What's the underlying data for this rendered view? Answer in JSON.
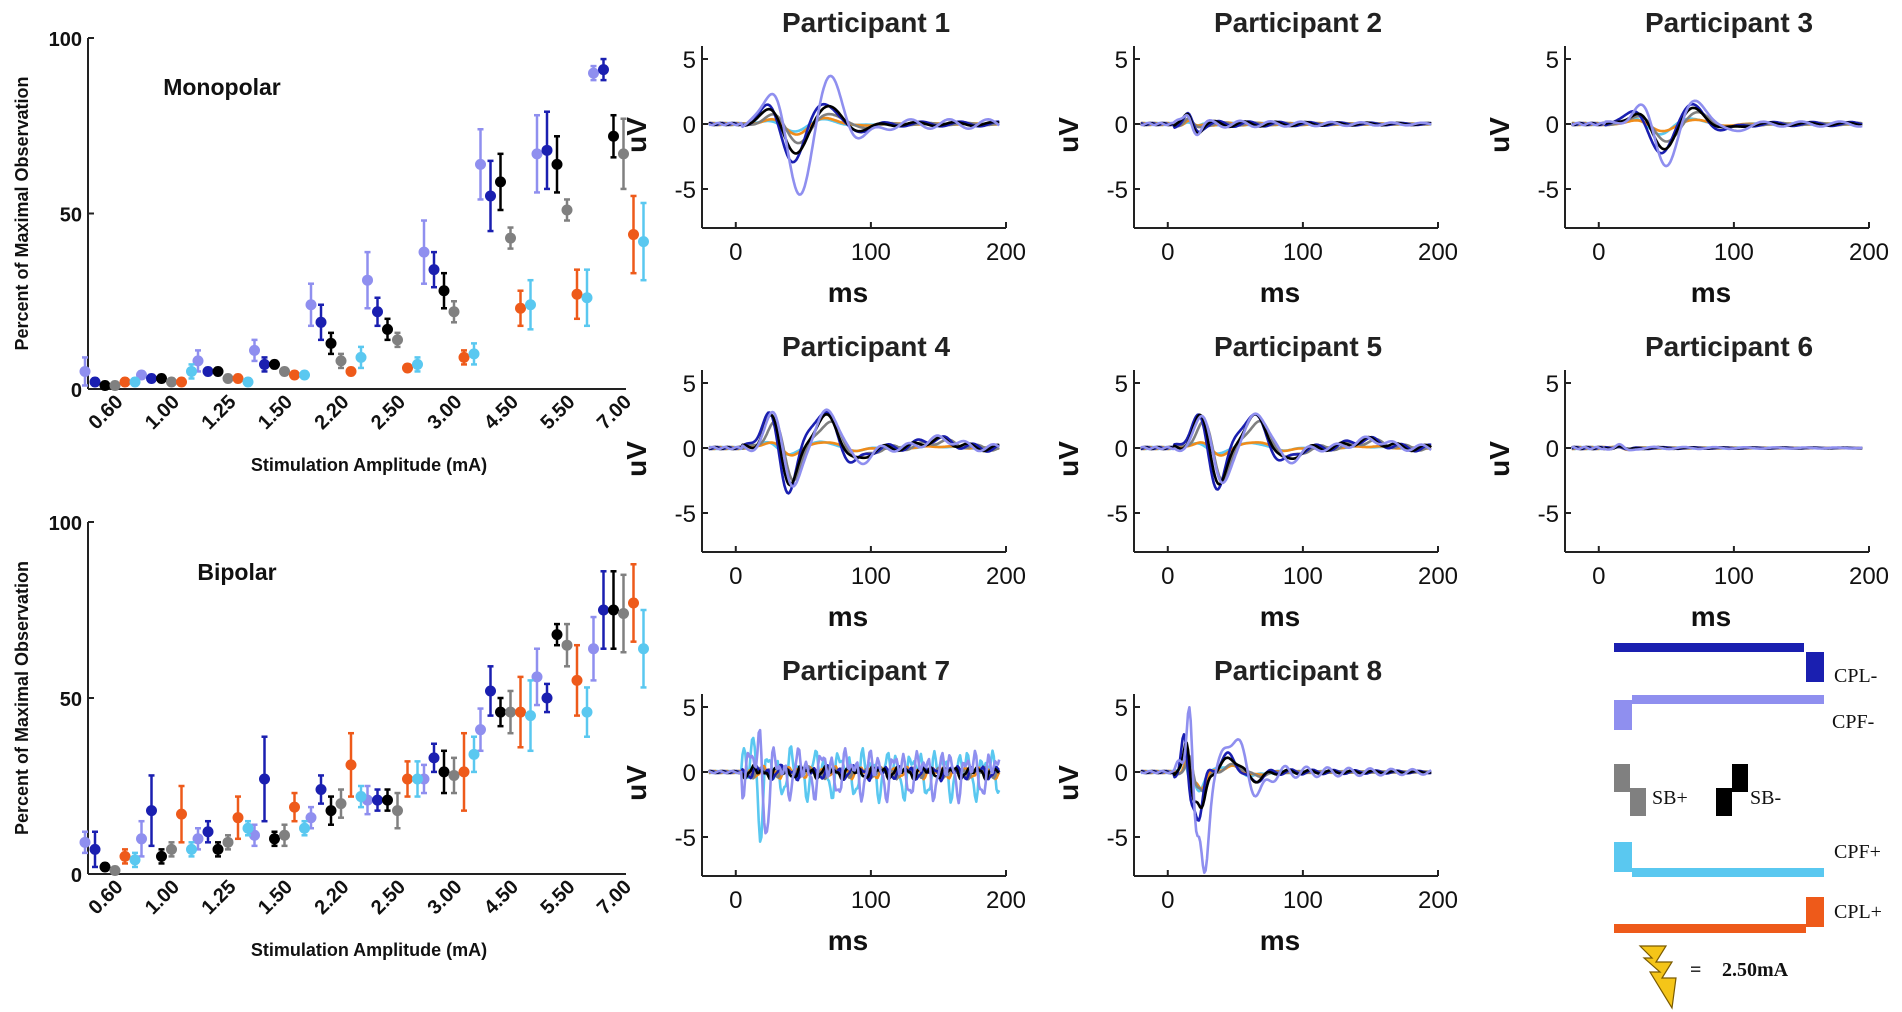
{
  "chart_data": [
    {
      "type": "scatter",
      "subtype": "errorbar",
      "label": "Monopolar",
      "xlabel": "Stimulation Amplitude (mA)",
      "ylabel": "Percent of Maximal Observation",
      "ylim": [
        0,
        100
      ],
      "yticks": [
        0,
        50,
        100
      ],
      "categories": [
        "0.60",
        "1.00",
        "1.25",
        "1.50",
        "2.20",
        "2.50",
        "3.00",
        "4.50",
        "5.50",
        "7.00"
      ],
      "series": [
        {
          "name": "CPF-",
          "values": [
            5,
            4,
            8,
            11,
            24,
            31,
            39,
            64,
            67,
            90
          ],
          "err": [
            4,
            1,
            3,
            3,
            6,
            8,
            9,
            10,
            11,
            2
          ]
        },
        {
          "name": "CPL-",
          "values": [
            2,
            3,
            5,
            7,
            19,
            22,
            34,
            55,
            68,
            91
          ],
          "err": [
            1,
            1,
            1,
            2,
            5,
            4,
            5,
            10,
            11,
            3
          ]
        },
        {
          "name": "SB-",
          "values": [
            1,
            3,
            5,
            7,
            13,
            17,
            28,
            59,
            64,
            72
          ],
          "err": [
            1,
            1,
            1,
            1,
            3,
            3,
            5,
            8,
            8,
            6
          ]
        },
        {
          "name": "SB+",
          "values": [
            1,
            2,
            3,
            5,
            8,
            14,
            22,
            43,
            51,
            67
          ],
          "err": [
            1,
            1,
            1,
            1,
            2,
            2,
            3,
            3,
            3,
            10
          ]
        },
        {
          "name": "CPL+",
          "values": [
            2,
            2,
            3,
            4,
            5,
            6,
            9,
            23,
            27,
            44
          ],
          "err": [
            1,
            1,
            1,
            1,
            1,
            1,
            2,
            5,
            7,
            11
          ]
        },
        {
          "name": "CPF+",
          "values": [
            2,
            5,
            2,
            4,
            9,
            7,
            10,
            24,
            26,
            42
          ],
          "err": [
            1,
            2,
            1,
            1,
            3,
            2,
            3,
            7,
            8,
            11
          ]
        }
      ]
    },
    {
      "type": "scatter",
      "subtype": "errorbar",
      "label": "Bipolar",
      "xlabel": "Stimulation Amplitude (mA)",
      "ylabel": "Percent of Maximal Observation",
      "ylim": [
        0,
        100
      ],
      "yticks": [
        0,
        50,
        100
      ],
      "categories": [
        "0.60",
        "1.00",
        "1.25",
        "1.50",
        "2.20",
        "2.50",
        "3.00",
        "4.50",
        "5.50",
        "7.00"
      ],
      "series": [
        {
          "name": "CPF-",
          "values": [
            9,
            10,
            10,
            11,
            16,
            21,
            27,
            41,
            56,
            64
          ],
          "err": [
            3,
            5,
            3,
            3,
            3,
            4,
            4,
            6,
            8,
            9
          ]
        },
        {
          "name": "CPL-",
          "values": [
            7,
            18,
            12,
            27,
            24,
            21,
            33,
            52,
            50,
            75
          ],
          "err": [
            5,
            10,
            3,
            12,
            4,
            3,
            4,
            7,
            4,
            11
          ]
        },
        {
          "name": "SB-",
          "values": [
            2,
            5,
            7,
            10,
            18,
            21,
            29,
            46,
            68,
            75
          ],
          "err": [
            1,
            2,
            2,
            2,
            4,
            3,
            6,
            4,
            3,
            11
          ]
        },
        {
          "name": "SB+",
          "values": [
            1,
            7,
            9,
            11,
            20,
            18,
            28,
            46,
            65,
            74
          ],
          "err": [
            1,
            2,
            2,
            3,
            4,
            5,
            5,
            6,
            6,
            11
          ]
        },
        {
          "name": "CPL+",
          "values": [
            5,
            17,
            16,
            19,
            31,
            27,
            29,
            46,
            55,
            77
          ],
          "err": [
            2,
            8,
            6,
            4,
            9,
            5,
            11,
            10,
            10,
            11
          ]
        },
        {
          "name": "CPF+",
          "values": [
            4,
            7,
            13,
            13,
            22,
            27,
            34,
            45,
            46,
            64
          ],
          "err": [
            2,
            2,
            2,
            2,
            3,
            5,
            5,
            10,
            7,
            11
          ]
        }
      ]
    },
    {
      "type": "line",
      "group": "participant-waveforms",
      "xlabel": "ms",
      "ylabel": "uV",
      "xlim": [
        -25,
        200
      ],
      "ylim": [
        -8,
        6
      ],
      "xticks": [
        0,
        100,
        200
      ],
      "yticks": [
        -5,
        0,
        5
      ],
      "series_names": [
        "CPL-",
        "CPF-",
        "SB+",
        "SB-",
        "CPF+",
        "CPL+"
      ],
      "panels": [
        {
          "title": "Participant 1",
          "pattern": "triphasic",
          "amplitudes": {
            "CPL-": 3,
            "CPF-": 6,
            "SB+": 1.5,
            "SB-": 2.5,
            "CPF+": 0.6,
            "CPL+": 0.8
          },
          "peak_ms": 45
        },
        {
          "title": "Participant 2",
          "pattern": "flat",
          "amplitudes": {
            "CPL-": 1,
            "CPF-": 1.2,
            "SB+": 0.6,
            "SB-": 1,
            "CPF+": 0.4,
            "CPL+": 0.5
          },
          "peak_ms": 30
        },
        {
          "title": "Participant 3",
          "pattern": "triphasic",
          "amplitudes": {
            "CPL-": 2.5,
            "CPF-": 3.2,
            "SB+": 1.5,
            "SB-": 2,
            "CPF+": 0.8,
            "CPL+": 0.6
          },
          "peak_ms": 48
        },
        {
          "title": "Participant 4",
          "pattern": "biphasic",
          "amplitudes": {
            "CPL-": 3.5,
            "CPF-": 3.5,
            "SB+": 2.5,
            "SB-": 3,
            "CPF+": 0.6,
            "CPL+": 0.6
          },
          "peak_ms": 40
        },
        {
          "title": "Participant 5",
          "pattern": "biphasic",
          "amplitudes": {
            "CPL-": 3.2,
            "CPF-": 3.2,
            "SB+": 2.5,
            "SB-": 3,
            "CPF+": 0.5,
            "CPL+": 0.6
          },
          "peak_ms": 38
        },
        {
          "title": "Participant 6",
          "pattern": "flat",
          "amplitudes": {
            "CPL-": 0.3,
            "CPF-": 0.4,
            "SB+": 0.2,
            "SB-": 0.3,
            "CPF+": 0.2,
            "CPL+": 0.2
          },
          "peak_ms": 30
        },
        {
          "title": "Participant 7",
          "pattern": "noise",
          "amplitudes": {
            "CPL-": 1,
            "CPF-": 3.5,
            "SB+": 0.8,
            "SB-": 0.9,
            "CPF+": 3.5,
            "CPL+": 0.8
          },
          "peak_ms": 20
        },
        {
          "title": "Participant 8",
          "pattern": "spike",
          "amplitudes": {
            "CPL-": 3.5,
            "CPF-": 8,
            "SB+": 1.5,
            "SB-": 3,
            "CPF+": 1.5,
            "CPL+": 1.2
          },
          "peak_ms": 25
        }
      ]
    }
  ],
  "legend": {
    "items": [
      {
        "name": "CPL-",
        "color": "#1a1fb0"
      },
      {
        "name": "CPF-",
        "color": "#8f8fef"
      },
      {
        "name": "SB+",
        "color": "#808080"
      },
      {
        "name": "SB-",
        "color": "#000000"
      },
      {
        "name": "CPF+",
        "color": "#5ac8f0"
      },
      {
        "name": "CPL+",
        "color": "#ee5a1a"
      }
    ],
    "equals_sign": "=",
    "amplitude_label": "2.50mA",
    "bolt_color": "#f5c518"
  },
  "colors": {
    "CPF-": "#8f8fef",
    "CPL-": "#1a1fb0",
    "SB-": "#000000",
    "SB+": "#808080",
    "CPL+": "#ee5a1a",
    "CPF+": "#5ac8f0",
    "CPL+_trace": "#f08c1a"
  }
}
